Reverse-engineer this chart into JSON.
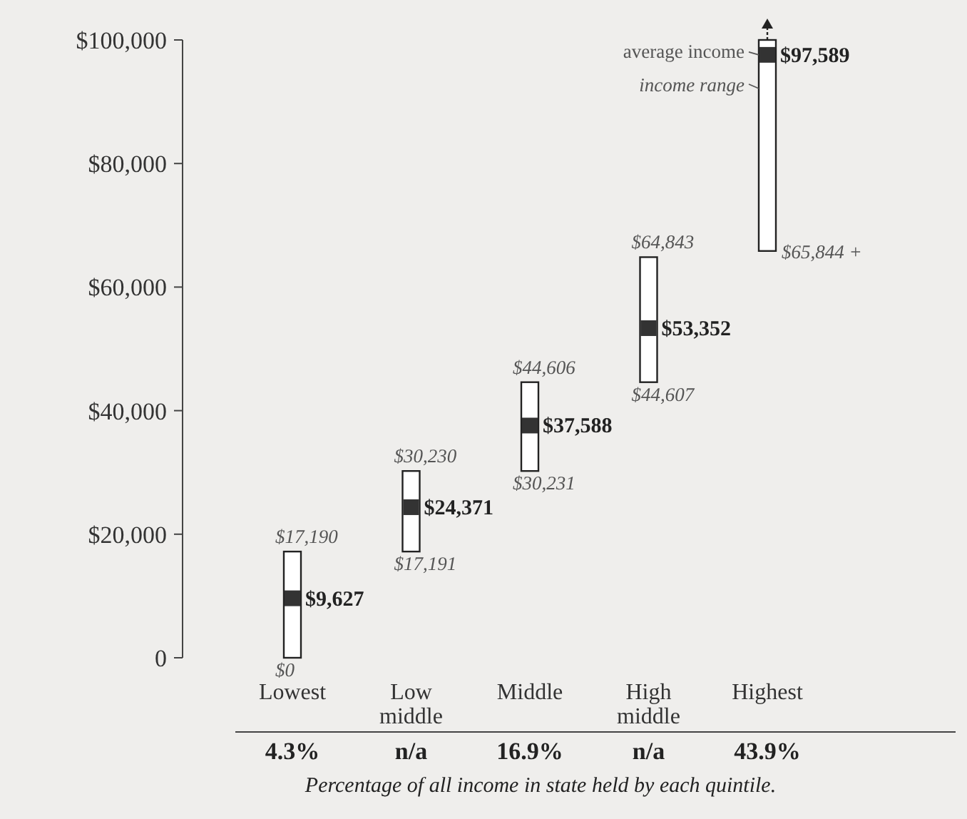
{
  "chart_data": {
    "type": "bar",
    "categories": [
      "Lowest",
      "Low\nmiddle",
      "Middle",
      "High\nmiddle",
      "Highest"
    ],
    "series": [
      {
        "color": "#ffffff",
        "values": [
          17190,
          13039,
          14375,
          20236,
          34156
        ],
        "base": [
          0,
          17191,
          30231,
          44607,
          65844
        ]
      },
      {
        "type": "scatter",
        "color": "#333333",
        "marker": "square",
        "x": [
          "Lowest",
          "Low\nmiddle",
          "Middle",
          "High\nmiddle",
          "Highest"
        ],
        "values": [
          9627,
          24371,
          37588,
          53352,
          97589
        ],
        "value_labels": [
          "$9,627",
          "$24,371",
          "$37,588",
          "$53,352",
          "$97,589"
        ]
      }
    ],
    "ylim": [
      0,
      100000
    ],
    "yticks": [
      0,
      {
        "value": 20000,
        "label": "$20,000"
      },
      {
        "value": 40000,
        "label": "$40,000"
      },
      {
        "value": 60000,
        "label": "$60,000"
      },
      {
        "value": 80000,
        "label": "$80,000"
      },
      {
        "value": 100000,
        "label": "$100,000"
      }
    ],
    "annotations": [
      {
        "text": "$17,190",
        "x": "Lowest",
        "y": 17190
      },
      {
        "text": "$0",
        "x": "Lowest",
        "y": 0
      },
      {
        "text": "$30,230",
        "x": "Low\nmiddle",
        "y": 30230
      },
      {
        "text": "$17,191",
        "x": "Low\nmiddle",
        "y": 17191
      },
      {
        "text": "$44,606",
        "x": "Middle",
        "y": 44606
      },
      {
        "text": "$30,231",
        "x": "Middle",
        "y": 30231
      },
      {
        "text": "$64,843",
        "x": "High\nmiddle",
        "y": 64843
      },
      {
        "text": "$44,607",
        "x": "High\nmiddle",
        "y": 44607
      },
      {
        "text": "$65,844 +",
        "x": "Highest",
        "y": 65844
      },
      {
        "text": "average income",
        "x": "Highest",
        "y": 97589
      },
      "income range",
      "4.3%",
      "n/a",
      "16.9%",
      "n/a",
      "43.9%",
      "Percentage of all income in state held by each quintile."
    ],
    "grid": false
  }
}
